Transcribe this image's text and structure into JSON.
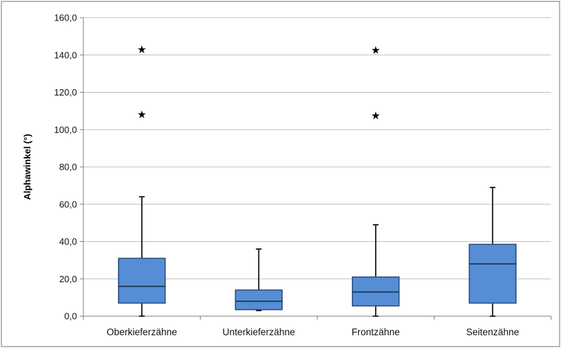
{
  "chart_data": {
    "type": "box",
    "title": "",
    "xlabel": "",
    "ylabel": "Alphawinkel (°)",
    "ylim": [
      0,
      160
    ],
    "y_ticks": [
      0,
      20,
      40,
      60,
      80,
      100,
      120,
      140,
      160
    ],
    "y_tick_labels": [
      "0,0",
      "20,0",
      "40,0",
      "60,0",
      "80,0",
      "100,0",
      "120,0",
      "140,0",
      "160,0"
    ],
    "grid": true,
    "legend": "none",
    "colors": {
      "box_fill": "#558ed5",
      "box_edge": "#2f4f7f",
      "whisker": "#000000"
    },
    "categories": [
      "Oberkieferzähne",
      "Unterkieferzähne",
      "Frontzähne",
      "Seitenzähne"
    ],
    "boxes": [
      {
        "min": 0,
        "q1": 7,
        "median": 16,
        "q3": 31,
        "max": 64,
        "outliers": [
          108,
          143
        ]
      },
      {
        "min": 3,
        "q1": 3.5,
        "median": 8,
        "q3": 14,
        "max": 36,
        "outliers": []
      },
      {
        "min": 0,
        "q1": 5.5,
        "median": 13,
        "q3": 21,
        "max": 49,
        "outliers": [
          107.5,
          142.5
        ]
      },
      {
        "min": 0,
        "q1": 7,
        "median": 28,
        "q3": 38.5,
        "max": 69,
        "outliers": []
      }
    ]
  }
}
